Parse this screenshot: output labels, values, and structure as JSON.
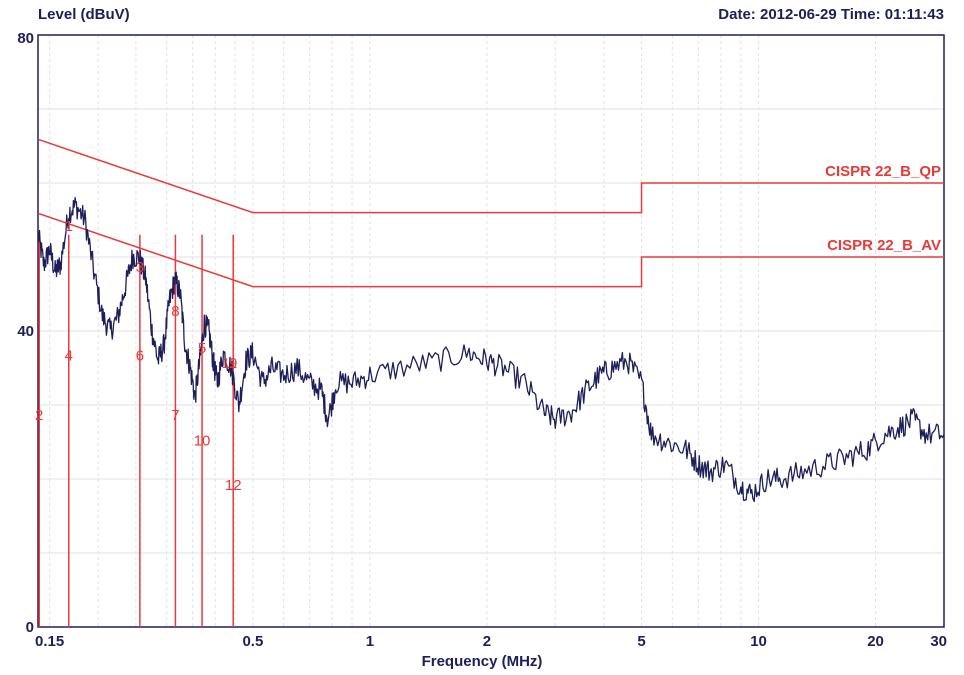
{
  "header": {
    "ylabel": "Level (dBuV)",
    "datetime": "Date: 2012-06-29  Time: 01:11:43"
  },
  "chart_data": {
    "type": "line",
    "xlabel": "Frequency (MHz)",
    "ylabel": "Level (dBuV)",
    "x_scale": "log",
    "xlim": [
      0.14,
      30
    ],
    "ylim": [
      0,
      80
    ],
    "grid": true,
    "x_ticks": [
      {
        "value": 0.15,
        "label": "0.15"
      },
      {
        "value": 0.5,
        "label": "0.5"
      },
      {
        "value": 1,
        "label": "1"
      },
      {
        "value": 2,
        "label": "2"
      },
      {
        "value": 5,
        "label": "5"
      },
      {
        "value": 10,
        "label": "10"
      },
      {
        "value": 20,
        "label": "20"
      },
      {
        "value": 30,
        "label": "30"
      }
    ],
    "y_ticks": [
      {
        "value": 0,
        "label": "0"
      },
      {
        "value": 40,
        "label": "40"
      },
      {
        "value": 80,
        "label": "80"
      }
    ],
    "limits": [
      {
        "name": "CISPR 22_B_QP",
        "color": "#e83a3a",
        "points": [
          [
            0.14,
            65.9
          ],
          [
            0.5,
            56
          ],
          [
            5,
            56
          ],
          [
            5,
            60
          ],
          [
            30,
            60
          ]
        ]
      },
      {
        "name": "CISPR 22_B_AV",
        "color": "#e83a3a",
        "points": [
          [
            0.14,
            55.9
          ],
          [
            0.5,
            46
          ],
          [
            5,
            46
          ],
          [
            5,
            50
          ],
          [
            30,
            50
          ]
        ]
      }
    ],
    "trace": {
      "color": "#1e1e5a",
      "points": [
        [
          0.14,
          53
        ],
        [
          0.145,
          49
        ],
        [
          0.15,
          51
        ],
        [
          0.155,
          48
        ],
        [
          0.16,
          49
        ],
        [
          0.168,
          56
        ],
        [
          0.175,
          57
        ],
        [
          0.185,
          55
        ],
        [
          0.195,
          48
        ],
        [
          0.205,
          42
        ],
        [
          0.215,
          40
        ],
        [
          0.225,
          42
        ],
        [
          0.235,
          46
        ],
        [
          0.245,
          50
        ],
        [
          0.255,
          50
        ],
        [
          0.265,
          47
        ],
        [
          0.275,
          40
        ],
        [
          0.285,
          36
        ],
        [
          0.295,
          38
        ],
        [
          0.305,
          44
        ],
        [
          0.315,
          47
        ],
        [
          0.325,
          45
        ],
        [
          0.335,
          38
        ],
        [
          0.345,
          35
        ],
        [
          0.355,
          31
        ],
        [
          0.365,
          36
        ],
        [
          0.375,
          41
        ],
        [
          0.385,
          40
        ],
        [
          0.395,
          36
        ],
        [
          0.405,
          33
        ],
        [
          0.42,
          37
        ],
        [
          0.44,
          35
        ],
        [
          0.46,
          30
        ],
        [
          0.48,
          36
        ],
        [
          0.5,
          37
        ],
        [
          0.53,
          33
        ],
        [
          0.56,
          35
        ],
        [
          0.6,
          34
        ],
        [
          0.65,
          35
        ],
        [
          0.7,
          33
        ],
        [
          0.75,
          32
        ],
        [
          0.78,
          28
        ],
        [
          0.82,
          33
        ],
        [
          0.9,
          33
        ],
        [
          1.0,
          34
        ],
        [
          1.2,
          35
        ],
        [
          1.5,
          36
        ],
        [
          1.8,
          37
        ],
        [
          2.0,
          36
        ],
        [
          2.2,
          35
        ],
        [
          2.5,
          33
        ],
        [
          2.8,
          29
        ],
        [
          3.0,
          28
        ],
        [
          3.3,
          29
        ],
        [
          3.6,
          32
        ],
        [
          3.9,
          34
        ],
        [
          4.2,
          35
        ],
        [
          4.6,
          36
        ],
        [
          5.0,
          33
        ],
        [
          5.3,
          26
        ],
        [
          5.8,
          25
        ],
        [
          6.5,
          24
        ],
        [
          7.0,
          22
        ],
        [
          7.5,
          21
        ],
        [
          8.2,
          22
        ],
        [
          9.0,
          19
        ],
        [
          9.6,
          18
        ],
        [
          10.5,
          20
        ],
        [
          11.5,
          20
        ],
        [
          13,
          21
        ],
        [
          15,
          22
        ],
        [
          17,
          23
        ],
        [
          19,
          24
        ],
        [
          21,
          26
        ],
        [
          23,
          27
        ],
        [
          25,
          28
        ],
        [
          27,
          26
        ],
        [
          30,
          26
        ]
      ]
    },
    "markers": [
      {
        "label": "1",
        "x": 0.168,
        "y": 53.5
      },
      {
        "label": "2",
        "x": 0.141,
        "y": 28
      },
      {
        "label": "3",
        "x": 0.256,
        "y": 48
      },
      {
        "label": "4",
        "x": 0.168,
        "y": 36
      },
      {
        "label": "5",
        "x": 0.37,
        "y": 37
      },
      {
        "label": "6",
        "x": 0.256,
        "y": 36
      },
      {
        "label": "7",
        "x": 0.316,
        "y": 28
      },
      {
        "label": "8",
        "x": 0.316,
        "y": 42
      },
      {
        "label": "9",
        "x": 0.445,
        "y": 35
      },
      {
        "label": "10",
        "x": 0.37,
        "y": 24.5
      },
      {
        "label": "11",
        "x": 0.435,
        "y": 35
      },
      {
        "label": "12",
        "x": 0.445,
        "y": 18.5
      }
    ],
    "marker_lines": [
      0.141,
      0.168,
      0.256,
      0.316,
      0.37,
      0.445
    ]
  }
}
